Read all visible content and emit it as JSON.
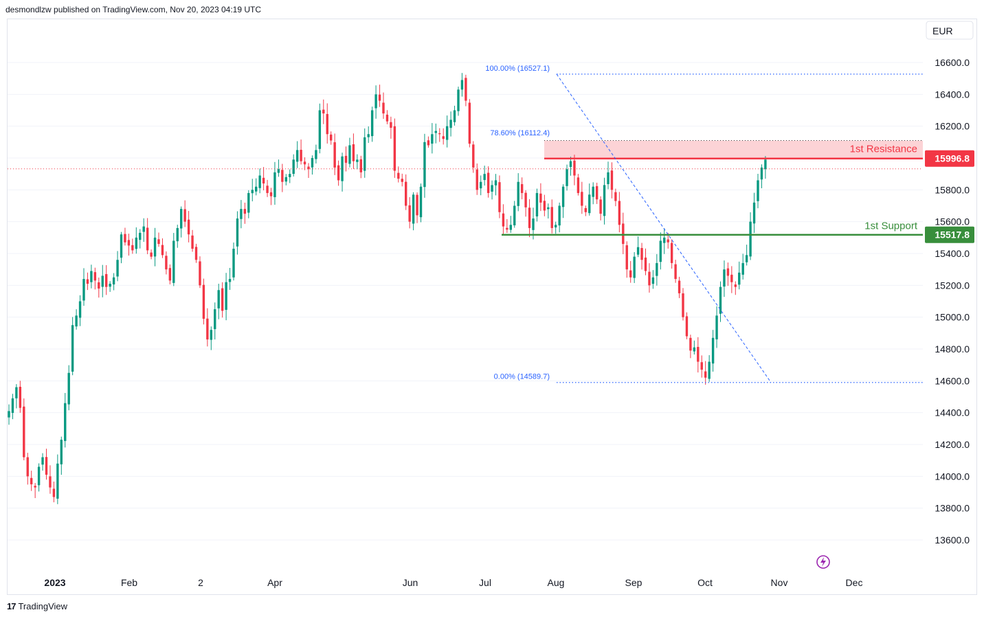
{
  "header": {
    "text": "desmondlzw published on TradingView.com, Nov 20, 2023 04:19 UTC"
  },
  "footer": {
    "brand": "TradingView",
    "logo_text": "17"
  },
  "currency_button": {
    "label": "EUR"
  },
  "colors": {
    "up": "#089981",
    "down": "#f23645",
    "resistance": "#f23645",
    "resistance_zone": "rgba(242,54,69,0.22)",
    "support": "#388e3c",
    "fib": "#2962ff",
    "fib_text": "#2962ff",
    "grid": "#f0f3fa",
    "axis_text": "#131722"
  },
  "chart_data": {
    "type": "candlestick",
    "ylim": [
      13500,
      16700
    ],
    "y_ticks": [
      13600,
      13800,
      14000,
      14200,
      14400,
      14600,
      14800,
      15000,
      15200,
      15400,
      15600,
      15800,
      16000,
      16200,
      16400,
      16600
    ],
    "y_tick_labels": [
      "13600.0",
      "13800.0",
      "14000.0",
      "14200.0",
      "14400.0",
      "14600.0",
      "14800.0",
      "15000.0",
      "15200.0",
      "15400.0",
      "15600.0",
      "15800.0",
      "16000.0",
      "16200.0",
      "16400.0",
      "16600.0"
    ],
    "x_labels": [
      "2023",
      "Feb",
      "2",
      "Apr",
      "Jun",
      "Jul",
      "Aug",
      "Sep",
      "Oct",
      "Nov",
      "Dec"
    ],
    "current_price": 15996.8,
    "levels": [
      {
        "name": "1st Resistance",
        "value": 15996.8,
        "label": "15996.8",
        "zone_top": 16110
      },
      {
        "name": "1st Support",
        "value": 15517.8,
        "label": "15517.8"
      }
    ],
    "fibonacci": [
      {
        "label": "100.00% (16527.1)",
        "value": 16527.1
      },
      {
        "label": "78.60% (16112.4)",
        "value": 16112.4
      },
      {
        "label": "0.00% (14589.7)",
        "value": 14589.7
      }
    ],
    "closes": [
      14410,
      14490,
      14560,
      14430,
      14120,
      14000,
      13950,
      13930,
      14060,
      14120,
      14010,
      13930,
      13870,
      14080,
      14230,
      14460,
      14650,
      14950,
      15010,
      15100,
      15240,
      15210,
      15290,
      15230,
      15180,
      15260,
      15190,
      15210,
      15250,
      15360,
      15520,
      15470,
      15450,
      15420,
      15500,
      15530,
      15570,
      15420,
      15380,
      15500,
      15460,
      15390,
      15300,
      15230,
      15480,
      15560,
      15680,
      15600,
      15520,
      15430,
      15360,
      15200,
      14990,
      14860,
      14920,
      15050,
      15170,
      15040,
      15220,
      15240,
      15430,
      15620,
      15680,
      15650,
      15780,
      15800,
      15820,
      15890,
      15840,
      15780,
      15760,
      15910,
      15930,
      15850,
      15880,
      15900,
      15990,
      16050,
      15980,
      15960,
      15930,
      16000,
      16050,
      16300,
      16280,
      16150,
      16110,
      15940,
      15860,
      16010,
      15970,
      16080,
      15980,
      15990,
      15910,
      16130,
      16150,
      16300,
      16400,
      16360,
      16280,
      16230,
      16190,
      15920,
      15870,
      15850,
      15700,
      15600,
      15770,
      15640,
      15820,
      16100,
      16080,
      16150,
      16170,
      16150,
      16120,
      16200,
      16240,
      16300,
      16430,
      16490,
      16360,
      16090,
      15940,
      15800,
      15850,
      15900,
      15780,
      15830,
      15860,
      15660,
      15570,
      15550,
      15580,
      15700,
      15850,
      15780,
      15690,
      15560,
      15620,
      15780,
      15720,
      15670,
      15690,
      15560,
      15580,
      15700,
      15820,
      15930,
      15980,
      15890,
      15780,
      15700,
      15660,
      15770,
      15820,
      15740,
      15650,
      15830,
      15910,
      15800,
      15730,
      15580,
      15460,
      15300,
      15250,
      15380,
      15440,
      15360,
      15290,
      15200,
      15250,
      15340,
      15480,
      15500,
      15470,
      15340,
      15240,
      15150,
      15000,
      14880,
      14790,
      14810,
      14720,
      14670,
      14620,
      14720,
      14870,
      15010,
      15190,
      15300,
      15260,
      15220,
      15190,
      15280,
      15340,
      15390,
      15600,
      15720,
      15860,
      15940,
      15990
    ]
  }
}
